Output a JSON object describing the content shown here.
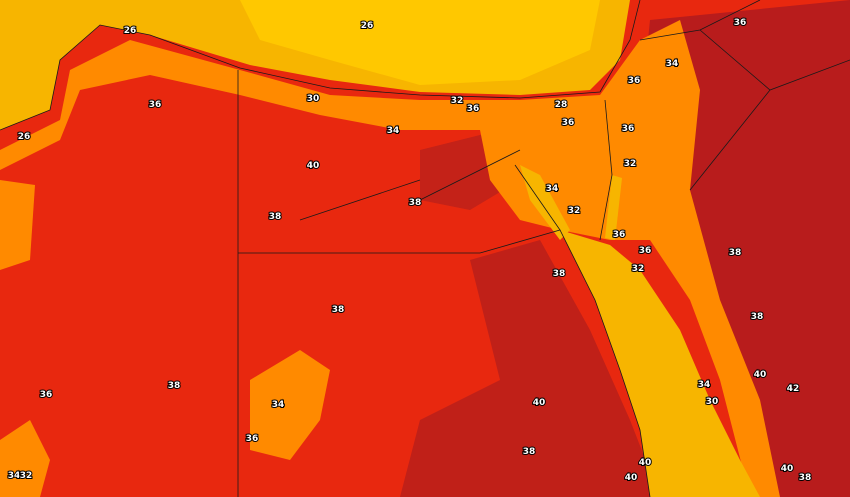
{
  "map": {
    "type": "temperature contour map",
    "colors": {
      "temp_26_28": "#f7b500",
      "temp_30_34": "#ff8a00",
      "temp_36_38": "#e82810",
      "temp_40_plus": "#b01a1a",
      "border": "#1a1a1a"
    },
    "contour_labels": [
      "26",
      "26",
      "36",
      "26",
      "30",
      "32",
      "36",
      "28",
      "36",
      "34",
      "36",
      "34",
      "36",
      "36",
      "32",
      "40",
      "38",
      "38",
      "34",
      "32",
      "36",
      "36",
      "32",
      "38",
      "38",
      "38",
      "38",
      "38",
      "36",
      "40",
      "42",
      "34",
      "34",
      "30",
      "40",
      "36",
      "38",
      "40",
      "40",
      "34",
      "32",
      "40",
      "38"
    ]
  }
}
